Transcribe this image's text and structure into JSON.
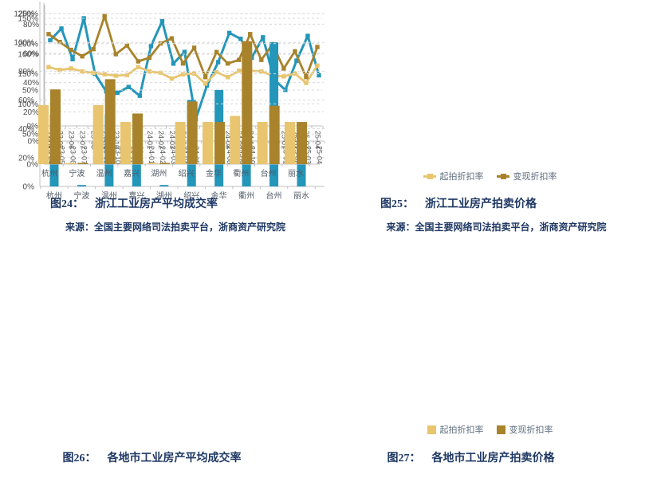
{
  "colors": {
    "teal": "#2396ba",
    "gold_light": "#e8c56e",
    "gold_dark": "#a8832b",
    "caption_navy": "#1f3864",
    "gridline": "#d9d9d9",
    "axis": "#c0c0c0"
  },
  "figures": {
    "fig24": {
      "caption_label": "图24：",
      "caption": "浙江工业房产平均成交率",
      "source": "来源：全国主要网络司法拍卖平台，浙商资产研究院"
    },
    "fig25": {
      "caption_label": "图25：",
      "caption": "浙江工业房产拍卖价格",
      "source": "来源：全国主要网络司法拍卖平台，浙商资产研究院"
    },
    "fig26": {
      "caption_label": "图26：",
      "caption": "各地市工业房产平均成交率"
    },
    "fig27": {
      "caption_label": "图27：",
      "caption": "各地市工业房产拍卖价格"
    }
  },
  "chart_data": [
    {
      "id": "fig24",
      "type": "line",
      "title": "图24：浙江工业房产平均成交率",
      "xlabel": "",
      "ylabel": "",
      "grid": true,
      "legend_position": "none",
      "ylim": [
        0,
        90
      ],
      "yticks": [
        0,
        20,
        40,
        60,
        80
      ],
      "x": [
        "23-04",
        "23-05",
        "23-06",
        "23-07",
        "23-08",
        "23-09",
        "23-10",
        "23-11",
        "23-12",
        "24-01",
        "24-02",
        "24-03",
        "24-04",
        "24-05",
        "24-06",
        "24-07",
        "24-08",
        "24-09",
        "24-10",
        "24-11",
        "24-12",
        "25-01",
        "25-02",
        "25-03",
        "25-04"
      ],
      "series": [
        {
          "name": "",
          "color": "#2396ba",
          "values": [
            69,
            77,
            56,
            84,
            46,
            34,
            33,
            37,
            31,
            65,
            82,
            53,
            61,
            15,
            38,
            54,
            74,
            70,
            57,
            71,
            42,
            35,
            55,
            72,
            45
          ]
        }
      ]
    },
    {
      "id": "fig25",
      "type": "line",
      "title": "图25：浙江工业房产拍卖价格",
      "xlabel": "",
      "ylabel": "",
      "grid": true,
      "legend_position": "bottom",
      "ylim": [
        0,
        160
      ],
      "yticks": [
        0,
        50,
        100,
        150
      ],
      "x": [
        "23-04",
        "23-05",
        "23-06",
        "23-07",
        "23-08",
        "23-09",
        "23-10",
        "23-11",
        "23-12",
        "24-01",
        "24-02",
        "24-03",
        "24-04",
        "24-05",
        "24-06",
        "24-07",
        "24-08",
        "24-09",
        "24-10",
        "24-11",
        "24-12",
        "25-01",
        "25-02",
        "25-03",
        "25-04"
      ],
      "series": [
        {
          "name": "起拍折扣率",
          "color": "#e8c56e",
          "values": [
            82,
            78,
            80,
            76,
            74,
            72,
            70,
            71,
            82,
            76,
            74,
            66,
            72,
            73,
            59,
            75,
            68,
            77,
            77,
            76,
            70,
            69,
            73,
            60,
            84
          ]
        },
        {
          "name": "变现折扣率",
          "color": "#a8832b",
          "values": [
            128,
            117,
            106,
            97,
            107,
            153,
            100,
            112,
            90,
            95,
            115,
            122,
            87,
            109,
            68,
            103,
            87,
            92,
            128,
            92,
            114,
            80,
            104,
            68,
            110
          ]
        }
      ]
    },
    {
      "id": "fig26",
      "type": "bar",
      "title": "图26：各地市工业房产平均成交率",
      "xlabel": "",
      "ylabel": "",
      "grid": true,
      "legend_position": "none",
      "ylim": [
        0,
        125
      ],
      "yticks": [
        0,
        20,
        40,
        60,
        80,
        100,
        120
      ],
      "x": [
        "杭州",
        "宁波",
        "温州",
        "嘉兴",
        "湖州",
        "绍兴",
        "金华",
        "衢州",
        "台州",
        "丽水"
      ],
      "series": [
        {
          "name": "",
          "color": "#2396ba",
          "values": [
            50,
            1,
            50,
            25,
            1,
            60,
            67,
            50,
            100,
            33
          ]
        }
      ]
    },
    {
      "id": "fig27",
      "type": "bar",
      "title": "图27：各地市工业房产拍卖价格",
      "xlabel": "",
      "ylabel": "",
      "grid": true,
      "legend_position": "bottom",
      "ylim": [
        0,
        260
      ],
      "yticks": [
        0,
        50,
        100,
        150,
        200,
        250
      ],
      "x": [
        "杭州",
        "宁波",
        "温州",
        "嘉兴",
        "湖州",
        "绍兴",
        "金华",
        "衢州",
        "台州",
        "丽水"
      ],
      "series": [
        {
          "name": "起拍折扣率",
          "color": "#e8c56e",
          "values": [
            98,
            2,
            98,
            70,
            2,
            70,
            70,
            80,
            70,
            70
          ]
        },
        {
          "name": "变现折扣率",
          "color": "#a8832b",
          "values": [
            124,
            2,
            141,
            84,
            2,
            104,
            70,
            204,
            97,
            70
          ]
        }
      ]
    }
  ]
}
